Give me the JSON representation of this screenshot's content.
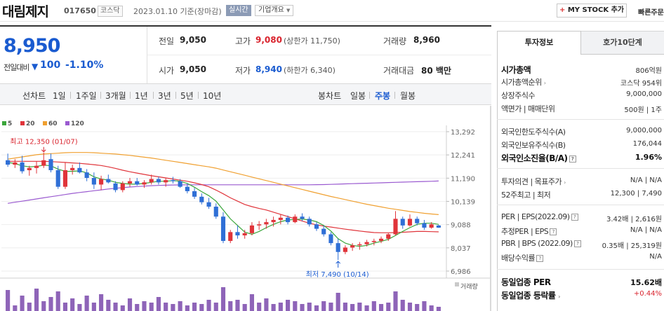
{
  "header": {
    "company": "대림제지",
    "code": "017650",
    "market": "코스닥",
    "date": "2023.01.10 기준(장마감)",
    "realtime": "실시간",
    "overview": "기업개요",
    "mystock": "MY STOCK 추가",
    "mystock_plus": "+",
    "quick": "빠른주문"
  },
  "price": {
    "current": "8,950",
    "change_label": "전일대비",
    "change_arrow": "▼",
    "change": "100",
    "change_pct": "-1.10%"
  },
  "quote": {
    "prev_label": "전일",
    "prev": "9,050",
    "high_label": "고가",
    "high": "9,080",
    "upper_limit": "(상한가 11,750)",
    "volume_label": "거래량",
    "volume": "8,960",
    "open_label": "시가",
    "open": "9,050",
    "low_label": "저가",
    "low": "8,940",
    "lower_limit": "(하한가 6,340)",
    "amount_label": "거래대금",
    "amount": "80 백만"
  },
  "periods": {
    "line_label": "선차트",
    "line_items": [
      "1일",
      "1주일",
      "3개월",
      "1년",
      "3년",
      "5년",
      "10년"
    ],
    "candle_label": "봉차트",
    "candle_items": [
      "일봉",
      "주봉",
      "월봉"
    ],
    "selected": "주봉"
  },
  "chart_data": {
    "type": "candlestick",
    "legend": [
      {
        "name": "5",
        "color": "#3aa63a"
      },
      {
        "name": "20",
        "color": "#e0343a"
      },
      {
        "name": "60",
        "color": "#f0a030"
      },
      {
        "name": "120",
        "color": "#9a5ad0"
      }
    ],
    "y_ticks": [
      "13,292",
      "12,241",
      "11,190",
      "10,139",
      "9,088",
      "8,037",
      "6,986"
    ],
    "ylim": [
      6986,
      13292
    ],
    "max_annotation": "최고 12,350 (01/07)",
    "min_annotation": "최저 7,490 (10/14)",
    "volume_label": "거래량",
    "up_color": "#e0343a",
    "down_color": "#2f6fd6",
    "candles": [
      [
        12000,
        12300,
        11700,
        11800
      ],
      [
        11800,
        12050,
        11650,
        11900
      ],
      [
        11900,
        12200,
        11400,
        11500
      ],
      [
        11550,
        11750,
        11300,
        11650
      ],
      [
        11650,
        11950,
        11400,
        11750
      ],
      [
        11750,
        12350,
        11650,
        12000
      ],
      [
        12050,
        12300,
        11450,
        11550
      ],
      [
        11550,
        11750,
        10700,
        10800
      ],
      [
        10800,
        11900,
        10700,
        11550
      ],
      [
        11550,
        11800,
        11350,
        11650
      ],
      [
        11650,
        11900,
        11400,
        11450
      ],
      [
        11450,
        11600,
        11050,
        11200
      ],
      [
        11200,
        11450,
        10700,
        10900
      ],
      [
        10900,
        11300,
        10650,
        11150
      ],
      [
        11150,
        11350,
        10950,
        11000
      ],
      [
        10950,
        11050,
        10550,
        10650
      ],
      [
        10650,
        11050,
        10550,
        10950
      ],
      [
        10950,
        11200,
        10800,
        11050
      ],
      [
        11050,
        11200,
        10850,
        10900
      ],
      [
        10900,
        11100,
        10750,
        11000
      ],
      [
        11000,
        11350,
        10900,
        11150
      ],
      [
        11150,
        11250,
        10900,
        11000
      ],
      [
        11000,
        11200,
        10800,
        11100
      ],
      [
        11100,
        11250,
        10950,
        11050
      ],
      [
        11050,
        11150,
        10750,
        10800
      ],
      [
        10800,
        10950,
        10500,
        10600
      ],
      [
        10600,
        10750,
        10250,
        10350
      ],
      [
        10350,
        10500,
        10000,
        10100
      ],
      [
        10100,
        10300,
        9800,
        9900
      ],
      [
        9900,
        10050,
        9350,
        9450
      ],
      [
        9450,
        9650,
        8250,
        8350
      ],
      [
        8350,
        8850,
        8250,
        8750
      ],
      [
        8750,
        9050,
        8450,
        8600
      ],
      [
        8600,
        8850,
        8450,
        8700
      ],
      [
        8700,
        9200,
        8600,
        9050
      ],
      [
        9050,
        9250,
        8850,
        9100
      ],
      [
        9100,
        9350,
        8900,
        9200
      ],
      [
        9200,
        9450,
        9000,
        9300
      ],
      [
        9300,
        9550,
        9100,
        9400
      ],
      [
        9400,
        9500,
        9100,
        9200
      ],
      [
        9200,
        9550,
        9150,
        9450
      ],
      [
        9450,
        9600,
        9250,
        9350
      ],
      [
        9350,
        9450,
        9000,
        9100
      ],
      [
        9100,
        9200,
        8800,
        8900
      ],
      [
        8900,
        9050,
        8550,
        8650
      ],
      [
        8650,
        8750,
        8150,
        8250
      ],
      [
        8250,
        8450,
        7490,
        7850
      ],
      [
        7850,
        8150,
        7750,
        8050
      ],
      [
        8050,
        8250,
        7900,
        8150
      ],
      [
        8150,
        8300,
        7950,
        8200
      ],
      [
        8200,
        8400,
        8100,
        8300
      ],
      [
        8300,
        8450,
        8150,
        8350
      ],
      [
        8350,
        8550,
        8250,
        8450
      ],
      [
        8450,
        8700,
        8350,
        8650
      ],
      [
        8650,
        9700,
        8600,
        9350
      ],
      [
        9350,
        9450,
        8900,
        9050
      ],
      [
        9050,
        9550,
        9000,
        9350
      ],
      [
        9350,
        9450,
        9050,
        9150
      ],
      [
        9150,
        9300,
        8850,
        8950
      ],
      [
        8950,
        9200,
        8900,
        9100
      ],
      [
        9050,
        9080,
        8940,
        8950
      ]
    ],
    "ma5": [
      11900,
      11850,
      11750,
      11700,
      11720,
      11780,
      11750,
      11600,
      11500,
      11500,
      11520,
      11430,
      11250,
      11150,
      11100,
      11000,
      10950,
      10920,
      10920,
      10950,
      11000,
      11050,
      11050,
      11080,
      11050,
      10950,
      10780,
      10580,
      10400,
      10150,
      9750,
      9350,
      9050,
      8750,
      8650,
      8780,
      8950,
      9100,
      9220,
      9300,
      9320,
      9340,
      9300,
      9220,
      9050,
      8800,
      8450,
      8250,
      8150,
      8100,
      8150,
      8250,
      8330,
      8420,
      8600,
      8780,
      8950,
      9100,
      9150,
      9150,
      9100
    ],
    "ma20": [
      11950,
      11950,
      11950,
      11950,
      11950,
      11950,
      11940,
      11920,
      11900,
      11880,
      11860,
      11830,
      11800,
      11760,
      11700,
      11630,
      11550,
      11480,
      11420,
      11360,
      11300,
      11250,
      11200,
      11150,
      11100,
      11050,
      10980,
      10900,
      10800,
      10650,
      10480,
      10300,
      10150,
      10000,
      9900,
      9820,
      9750,
      9650,
      9550,
      9450,
      9350,
      9250,
      9150,
      9080,
      9020,
      8980,
      8930,
      8880,
      8840,
      8800,
      8760,
      8730,
      8720,
      8720,
      8730,
      8740,
      8760,
      8780,
      8780,
      8770,
      8760
    ],
    "ma60": [
      12050,
      12100,
      12150,
      12200,
      12250,
      12280,
      12300,
      12320,
      12340,
      12350,
      12350,
      12350,
      12340,
      12320,
      12300,
      12280,
      12250,
      12220,
      12180,
      12140,
      12100,
      12050,
      12000,
      11950,
      11900,
      11850,
      11800,
      11750,
      11700,
      11640,
      11560,
      11480,
      11400,
      11320,
      11240,
      11160,
      11080,
      11000,
      10920,
      10840,
      10760,
      10680,
      10600,
      10520,
      10440,
      10360,
      10290,
      10220,
      10150,
      10080,
      10010,
      9950,
      9890,
      9830,
      9780,
      9730,
      9680,
      9640,
      9600,
      9570,
      9540
    ],
    "ma120": [
      10050,
      10100,
      10150,
      10200,
      10250,
      10300,
      10350,
      10400,
      10450,
      10500,
      10540,
      10580,
      10620,
      10660,
      10700,
      10730,
      10760,
      10790,
      10810,
      10830,
      10850,
      10860,
      10870,
      10880,
      10885,
      10890,
      10890,
      10890,
      10890,
      10890,
      10890,
      10890,
      10890,
      10890,
      10890,
      10890,
      10890,
      10890,
      10890,
      10890,
      10890,
      10890,
      10890,
      10895,
      10900,
      10910,
      10920,
      10930,
      10940,
      10950,
      10960,
      10970,
      10980,
      10990,
      11000,
      11010,
      11020,
      11030,
      11040,
      11050,
      11060
    ],
    "volumes": [
      0.75,
      0.2,
      0.55,
      0.3,
      0.8,
      0.35,
      0.5,
      0.7,
      0.3,
      0.45,
      0.25,
      0.55,
      0.3,
      0.6,
      0.4,
      0.3,
      0.2,
      0.45,
      0.25,
      0.35,
      0.3,
      0.5,
      0.3,
      0.25,
      0.35,
      0.2,
      0.3,
      0.25,
      0.4,
      0.3,
      0.85,
      0.35,
      0.4,
      0.25,
      0.6,
      0.3,
      0.45,
      0.25,
      0.3,
      0.4,
      0.35,
      0.25,
      0.3,
      0.2,
      0.35,
      0.3,
      0.65,
      0.3,
      0.25,
      0.3,
      0.2,
      0.35,
      0.25,
      0.3,
      0.7,
      0.4,
      0.3,
      0.25,
      0.35,
      0.2,
      0.15
    ]
  },
  "right": {
    "tab1": "투자정보",
    "tab2": "호가10단계",
    "rows": [
      {
        "label": "시가총액",
        "value": "806억원"
      },
      {
        "label": "시가총액순위",
        "value": "코스닥 954위"
      },
      {
        "label": "상장주식수",
        "value": "9,000,000"
      },
      {
        "label": "액면가 | 매매단위",
        "value": "500원 | 1주"
      },
      {
        "label": "외국인한도주식수(A)",
        "value": "9,000,000"
      },
      {
        "label": "외국인보유주식수(B)",
        "value": "176,044"
      },
      {
        "label": "외국인소진율(B/A)",
        "value": "1.96%"
      },
      {
        "label": "투자의견 | 목표주가",
        "value": "N/A | N/A"
      },
      {
        "label": "52주최고 | 최저",
        "value": "12,300 | 7,490"
      },
      {
        "label": "PER | EPS(2022.09)",
        "value": "3.42배 | 2,616원"
      },
      {
        "label": "추정PER | EPS",
        "value": "N/A | N/A"
      },
      {
        "label": "PBR | BPS (2022.09)",
        "value": "0.35배 | 25,319원"
      },
      {
        "label": "배당수익률",
        "value": "N/A"
      },
      {
        "label": "동일업종 PER",
        "value": "15.62배"
      },
      {
        "label": "동일업종 등락률",
        "value": "+0.44%"
      }
    ]
  }
}
